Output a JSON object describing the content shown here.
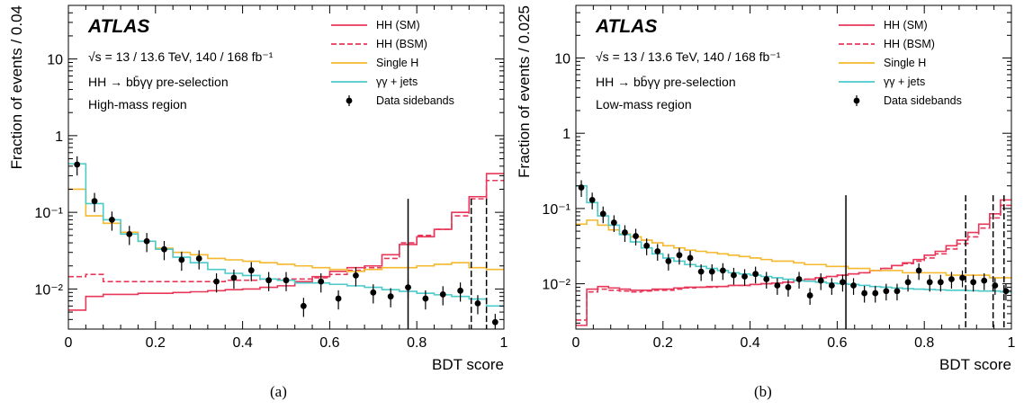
{
  "captions": [
    "(a)",
    "(b)"
  ],
  "chart_data": [
    {
      "type": "histogram",
      "panel_label": "(a)",
      "experiment": "ATLAS",
      "energy_lumi": "√s = 13 / 13.6 TeV, 140 / 168 fb⁻¹",
      "selection": "HH → bb̄γγ pre-selection",
      "region": "High-mass region",
      "xlabel": "BDT score",
      "ylabel": "Fraction of events / 0.04",
      "xlim": [
        0,
        1
      ],
      "ylim": [
        0.003,
        50
      ],
      "yscale": "log",
      "x_ticks": [
        0,
        0.2,
        0.4,
        0.6,
        0.8,
        1
      ],
      "x_tick_labels": [
        "0",
        "0.2",
        "0.4",
        "0.6",
        "0.8",
        "1"
      ],
      "y_ticks": [
        0.01,
        0.1,
        1,
        10
      ],
      "y_tick_labels": [
        "10⁻²",
        "10⁻¹",
        "1",
        "10"
      ],
      "legend_position": "top-right",
      "bin_edges": [
        0,
        0.04,
        0.08,
        0.12,
        0.16,
        0.2,
        0.24,
        0.28,
        0.32,
        0.36,
        0.4,
        0.44,
        0.48,
        0.52,
        0.56,
        0.6,
        0.64,
        0.68,
        0.72,
        0.76,
        0.8,
        0.84,
        0.88,
        0.92,
        0.96,
        1
      ],
      "series": [
        {
          "name": "HH (SM)",
          "style": "solid",
          "color": "#e8385a",
          "values": [
            0.0053,
            0.008,
            0.0085,
            0.0085,
            0.0088,
            0.0088,
            0.009,
            0.0092,
            0.0095,
            0.0098,
            0.01,
            0.0105,
            0.011,
            0.0125,
            0.0145,
            0.017,
            0.019,
            0.02,
            0.028,
            0.038,
            0.048,
            0.06,
            0.1,
            0.16,
            0.32
          ]
        },
        {
          "name": "HH (BSM)",
          "style": "dashed",
          "color": "#e8385a",
          "values": [
            0.0145,
            0.0155,
            0.0125,
            0.0125,
            0.0125,
            0.0125,
            0.0125,
            0.0125,
            0.0125,
            0.013,
            0.013,
            0.0135,
            0.0135,
            0.0135,
            0.014,
            0.0155,
            0.0175,
            0.019,
            0.025,
            0.04,
            0.05,
            0.06,
            0.09,
            0.15,
            0.26
          ]
        },
        {
          "name": "Single H",
          "style": "solid",
          "color": "#f5b82e",
          "values": [
            0.2,
            0.09,
            0.072,
            0.055,
            0.042,
            0.034,
            0.03,
            0.028,
            0.025,
            0.024,
            0.023,
            0.022,
            0.021,
            0.02,
            0.019,
            0.018,
            0.017,
            0.018,
            0.019,
            0.019,
            0.02,
            0.021,
            0.022,
            0.019,
            0.018
          ]
        },
        {
          "name": "γγ + jets",
          "style": "solid",
          "color": "#4cc9c9",
          "values": [
            0.43,
            0.13,
            0.08,
            0.052,
            0.042,
            0.033,
            0.026,
            0.022,
            0.018,
            0.016,
            0.015,
            0.0135,
            0.013,
            0.012,
            0.012,
            0.0115,
            0.011,
            0.0105,
            0.0098,
            0.0093,
            0.0088,
            0.0084,
            0.008,
            0.0074,
            0.006
          ]
        },
        {
          "name": "Data sidebands",
          "style": "points",
          "color": "#000000",
          "x": [
            0.02,
            0.06,
            0.1,
            0.14,
            0.18,
            0.22,
            0.26,
            0.3,
            0.34,
            0.38,
            0.42,
            0.46,
            0.5,
            0.54,
            0.58,
            0.62,
            0.66,
            0.7,
            0.74,
            0.78,
            0.82,
            0.86,
            0.9,
            0.94,
            0.98
          ],
          "values": [
            0.42,
            0.14,
            0.08,
            0.052,
            0.042,
            0.033,
            0.024,
            0.025,
            0.0125,
            0.014,
            0.0175,
            0.013,
            0.013,
            0.006,
            0.0125,
            0.0075,
            0.015,
            0.009,
            0.008,
            0.0105,
            0.0075,
            0.0085,
            0.0095,
            0.0065,
            0.0037
          ],
          "err_rel": 0.28
        }
      ],
      "vertical_lines": [
        {
          "x": 0.78,
          "style": "solid"
        },
        {
          "x": 0.925,
          "style": "dashed"
        },
        {
          "x": 0.96,
          "style": "dashed"
        }
      ]
    },
    {
      "type": "histogram",
      "panel_label": "(b)",
      "experiment": "ATLAS",
      "energy_lumi": "√s = 13 / 13.6 TeV, 140 / 168 fb⁻¹",
      "selection": "HH → bb̄γγ pre-selection",
      "region": "Low-mass region",
      "xlabel": "BDT score",
      "ylabel": "Fraction of events / 0.025",
      "xlim": [
        0,
        1
      ],
      "ylim": [
        0.0025,
        50
      ],
      "yscale": "log",
      "x_ticks": [
        0,
        0.2,
        0.4,
        0.6,
        0.8,
        1
      ],
      "x_tick_labels": [
        "0",
        "0.2",
        "0.4",
        "0.6",
        "0.8",
        "1"
      ],
      "y_ticks": [
        0.01,
        0.1,
        1,
        10
      ],
      "y_tick_labels": [
        "10⁻²",
        "10⁻¹",
        "1",
        "10"
      ],
      "legend_position": "top-right",
      "bin_edges": [
        0,
        0.025,
        0.05,
        0.075,
        0.1,
        0.125,
        0.15,
        0.175,
        0.2,
        0.225,
        0.25,
        0.275,
        0.3,
        0.325,
        0.35,
        0.375,
        0.4,
        0.425,
        0.45,
        0.475,
        0.5,
        0.525,
        0.55,
        0.575,
        0.6,
        0.625,
        0.65,
        0.675,
        0.7,
        0.725,
        0.75,
        0.775,
        0.8,
        0.825,
        0.85,
        0.875,
        0.9,
        0.925,
        0.95,
        0.975,
        1
      ],
      "series": [
        {
          "name": "HH (SM)",
          "style": "solid",
          "color": "#e8385a",
          "values": [
            0.0028,
            0.0085,
            0.0092,
            0.0088,
            0.0085,
            0.0082,
            0.0082,
            0.0085,
            0.0085,
            0.0088,
            0.009,
            0.009,
            0.0092,
            0.0092,
            0.0095,
            0.0095,
            0.0098,
            0.01,
            0.0102,
            0.0105,
            0.011,
            0.0115,
            0.012,
            0.0125,
            0.013,
            0.0135,
            0.014,
            0.015,
            0.016,
            0.0175,
            0.019,
            0.021,
            0.024,
            0.027,
            0.032,
            0.038,
            0.048,
            0.062,
            0.085,
            0.13
          ]
        },
        {
          "name": "HH (BSM)",
          "style": "dashed",
          "color": "#e8385a",
          "values": [
            0.0033,
            0.0078,
            0.0085,
            0.0082,
            0.008,
            0.0078,
            0.008,
            0.0082,
            0.0082,
            0.0085,
            0.0088,
            0.009,
            0.009,
            0.0092,
            0.0095,
            0.0095,
            0.0098,
            0.01,
            0.0102,
            0.0105,
            0.011,
            0.0115,
            0.012,
            0.0125,
            0.013,
            0.0135,
            0.014,
            0.015,
            0.016,
            0.0175,
            0.0185,
            0.02,
            0.022,
            0.025,
            0.029,
            0.034,
            0.042,
            0.055,
            0.075,
            0.11
          ]
        },
        {
          "name": "Single H",
          "style": "solid",
          "color": "#f5b82e",
          "values": [
            0.062,
            0.07,
            0.06,
            0.052,
            0.046,
            0.042,
            0.038,
            0.035,
            0.032,
            0.03,
            0.028,
            0.027,
            0.026,
            0.025,
            0.024,
            0.023,
            0.022,
            0.021,
            0.02,
            0.02,
            0.019,
            0.018,
            0.018,
            0.017,
            0.017,
            0.016,
            0.016,
            0.015,
            0.015,
            0.015,
            0.014,
            0.014,
            0.014,
            0.014,
            0.013,
            0.013,
            0.013,
            0.013,
            0.012,
            0.012
          ]
        },
        {
          "name": "γγ + jets",
          "style": "solid",
          "color": "#4cc9c9",
          "values": [
            0.2,
            0.12,
            0.08,
            0.06,
            0.045,
            0.036,
            0.03,
            0.025,
            0.022,
            0.02,
            0.018,
            0.017,
            0.016,
            0.015,
            0.014,
            0.0135,
            0.013,
            0.0125,
            0.012,
            0.0115,
            0.011,
            0.0108,
            0.0105,
            0.0102,
            0.01,
            0.0098,
            0.0095,
            0.0092,
            0.009,
            0.0088,
            0.0086,
            0.0085,
            0.0084,
            0.0083,
            0.0082,
            0.0082,
            0.0081,
            0.008,
            0.008,
            0.0078
          ]
        },
        {
          "name": "Data sidebands",
          "style": "points",
          "color": "#000000",
          "x": [
            0.0125,
            0.0375,
            0.0625,
            0.0875,
            0.1125,
            0.1375,
            0.1625,
            0.1875,
            0.2125,
            0.2375,
            0.2625,
            0.2875,
            0.3125,
            0.3375,
            0.3625,
            0.3875,
            0.4125,
            0.4375,
            0.4625,
            0.4875,
            0.5125,
            0.5375,
            0.5625,
            0.5875,
            0.6125,
            0.6375,
            0.6625,
            0.6875,
            0.7125,
            0.7375,
            0.7625,
            0.7875,
            0.8125,
            0.8375,
            0.8625,
            0.8875,
            0.9125,
            0.9375,
            0.9625,
            0.9875
          ],
          "values": [
            0.19,
            0.13,
            0.085,
            0.065,
            0.048,
            0.043,
            0.032,
            0.027,
            0.02,
            0.024,
            0.022,
            0.0145,
            0.0145,
            0.015,
            0.013,
            0.0125,
            0.0135,
            0.0115,
            0.0095,
            0.009,
            0.0115,
            0.007,
            0.011,
            0.0095,
            0.0105,
            0.0095,
            0.0075,
            0.0075,
            0.008,
            0.008,
            0.0105,
            0.015,
            0.0105,
            0.0105,
            0.0115,
            0.012,
            0.0105,
            0.011,
            0.0095,
            0.008
          ],
          "err_rel": 0.25
        }
      ],
      "vertical_lines": [
        {
          "x": 0.62,
          "style": "solid"
        },
        {
          "x": 0.895,
          "style": "dashed"
        },
        {
          "x": 0.958,
          "style": "dashed"
        },
        {
          "x": 0.983,
          "style": "dashed"
        }
      ]
    }
  ]
}
